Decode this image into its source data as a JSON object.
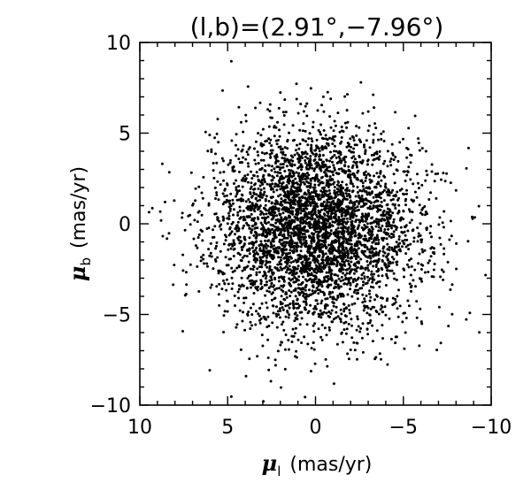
{
  "chart_data": {
    "type": "scatter",
    "title": "(l,b)=(2.91°,−7.96°)",
    "xlabel": {
      "symbol": "μ",
      "sub": "l",
      "unit": "(mas/yr)"
    },
    "ylabel": {
      "symbol": "μ",
      "sub": "b",
      "unit": "(mas/yr)"
    },
    "xlim": [
      10,
      -10
    ],
    "ylim": [
      -10,
      10
    ],
    "x_reversed": true,
    "xticks": [
      10,
      5,
      0,
      -5,
      -10
    ],
    "yticks": [
      10,
      5,
      0,
      -5,
      -10
    ],
    "xtick_labels": [
      "10",
      "5",
      "0",
      "−5",
      "−10"
    ],
    "ytick_labels": [
      "10",
      "5",
      "0",
      "−5",
      "−10"
    ],
    "grid": false,
    "marker_color": "#000000",
    "distribution": {
      "n_points": 4200,
      "x_center": 0.0,
      "y_center": -0.3,
      "x_sigma": 2.9,
      "y_sigma": 2.7
    }
  }
}
